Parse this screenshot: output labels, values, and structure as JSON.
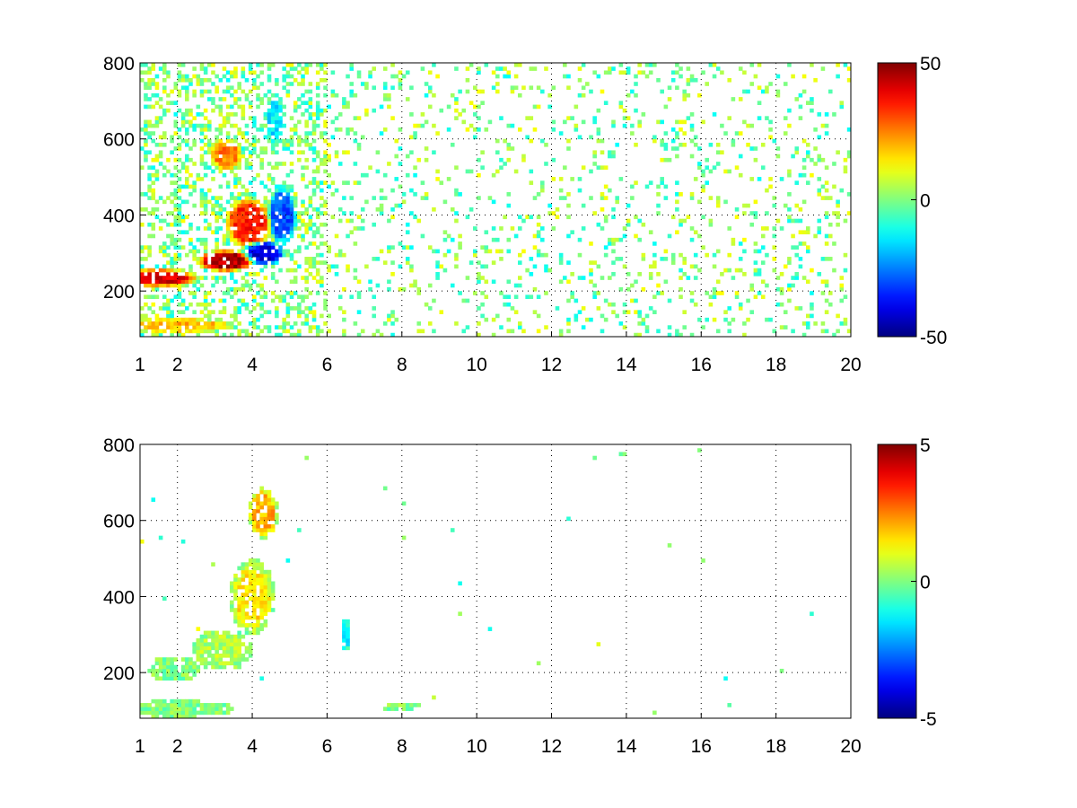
{
  "chart_data": [
    {
      "type": "heatmap",
      "title": "",
      "xlabel": "",
      "ylabel": "",
      "xlim": [
        1,
        20
      ],
      "ylim": [
        80,
        800
      ],
      "x_ticks": [
        "1",
        "2",
        "4",
        "6",
        "8",
        "10",
        "12",
        "14",
        "16",
        "18",
        "20"
      ],
      "y_ticks": [
        "200",
        "400",
        "600",
        "800"
      ],
      "grid": true,
      "colormap": "jet",
      "colorbar": {
        "min": -50,
        "max": 50,
        "labels": [
          "50",
          "0",
          "-50"
        ]
      },
      "features": [
        {
          "x": 1.5,
          "y": 235,
          "w": 2.2,
          "h": 50,
          "v": 40
        },
        {
          "x": 3.3,
          "y": 280,
          "w": 1.6,
          "h": 60,
          "v": 45
        },
        {
          "x": 3.9,
          "y": 380,
          "w": 1.3,
          "h": 140,
          "v": 35
        },
        {
          "x": 3.3,
          "y": 560,
          "w": 0.9,
          "h": 90,
          "v": 25
        },
        {
          "x": 4.3,
          "y": 300,
          "w": 1.2,
          "h": 70,
          "v": -40
        },
        {
          "x": 4.8,
          "y": 400,
          "w": 0.8,
          "h": 160,
          "v": -30
        },
        {
          "x": 4.6,
          "y": 650,
          "w": 0.5,
          "h": 150,
          "v": -15
        },
        {
          "x": 2.0,
          "y": 110,
          "w": 3.2,
          "h": 40,
          "v": 20
        }
      ]
    },
    {
      "type": "heatmap",
      "title": "",
      "xlabel": "",
      "ylabel": "",
      "xlim": [
        1,
        20
      ],
      "ylim": [
        80,
        800
      ],
      "x_ticks": [
        "1",
        "2",
        "4",
        "6",
        "8",
        "10",
        "12",
        "14",
        "16",
        "18",
        "20"
      ],
      "y_ticks": [
        "200",
        "400",
        "600",
        "800"
      ],
      "grid": true,
      "colormap": "jet",
      "colorbar": {
        "min": -5,
        "max": 5,
        "labels": [
          "5",
          "0",
          "-5"
        ]
      },
      "features": [
        {
          "x": 1.9,
          "y": 210,
          "w": 1.4,
          "h": 70,
          "v": 0
        },
        {
          "x": 3.2,
          "y": 260,
          "w": 1.6,
          "h": 110,
          "v": 0.5
        },
        {
          "x": 4.0,
          "y": 400,
          "w": 1.2,
          "h": 200,
          "v": 1.5
        },
        {
          "x": 4.3,
          "y": 620,
          "w": 0.8,
          "h": 140,
          "v": 2
        },
        {
          "x": 2.0,
          "y": 105,
          "w": 3.2,
          "h": 45,
          "v": 0
        },
        {
          "x": 6.5,
          "y": 300,
          "w": 0.15,
          "h": 120,
          "v": -2
        },
        {
          "x": 8.0,
          "y": 110,
          "w": 1.2,
          "h": 20,
          "v": 0
        },
        {
          "x": 13.9,
          "y": 775,
          "w": 0.15,
          "h": 25,
          "v": 0
        }
      ]
    }
  ]
}
